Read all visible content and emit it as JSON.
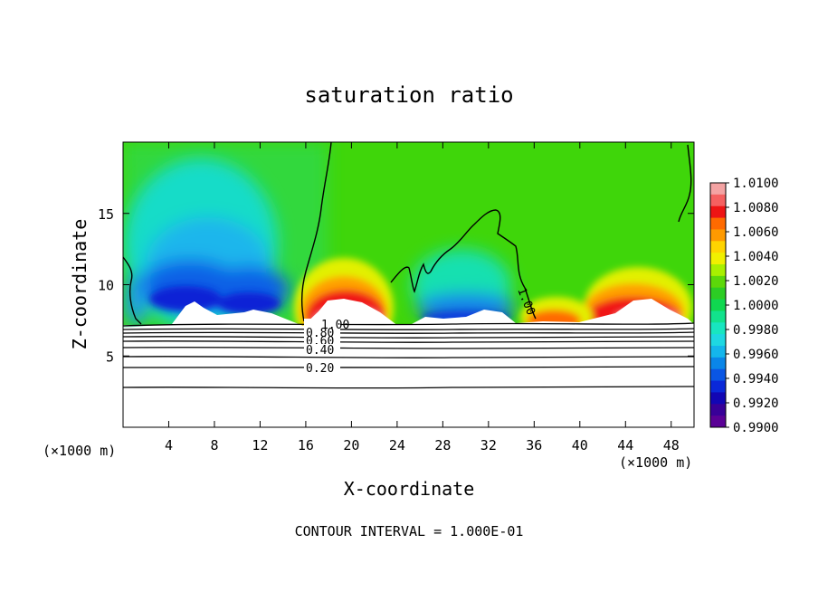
{
  "chart_data": {
    "type": "contour",
    "title": "saturation ratio",
    "xlabel": "X-coordinate",
    "ylabel": "Z-coordinate",
    "x_unit_left": "(×1000 m)",
    "x_unit_right": "(×1000 m)",
    "xlim": [
      0,
      50
    ],
    "ylim": [
      0,
      20
    ],
    "x_ticks": [
      4,
      8,
      12,
      16,
      20,
      24,
      28,
      32,
      36,
      40,
      44,
      48
    ],
    "y_ticks": [
      5,
      10,
      15
    ],
    "footer": "CONTOUR INTERVAL = 1.000E-01",
    "colorbar": {
      "levels": [
        "1.0100",
        "1.0080",
        "1.0060",
        "1.0040",
        "1.0020",
        "1.0000",
        "0.9980",
        "0.9960",
        "0.9940",
        "0.9920",
        "0.9900"
      ],
      "colors": [
        "#f4a3a3",
        "#f56060",
        "#ee1414",
        "#ff6a00",
        "#ff9a00",
        "#ffd400",
        "#f0f000",
        "#a8f000",
        "#5cd80a",
        "#2ccd24",
        "#10d850",
        "#12e28c",
        "#18e6c0",
        "#1ed8e2",
        "#14b6ec",
        "#0a86e8",
        "#0a56e4",
        "#0a28d8",
        "#1206b4",
        "#380098",
        "#5a0096"
      ]
    },
    "contour_lines": [
      {
        "label": "1.00",
        "z": 7.2
      },
      {
        "label": "0.80",
        "z": 6.8
      },
      {
        "label": "0.60",
        "z": 6.4
      },
      {
        "label": "0.40",
        "z": 5.8
      },
      {
        "label": "0.20",
        "z": 4.3
      }
    ],
    "field_1_00_label": "1.00",
    "lowest_line_z": 2.8
  }
}
